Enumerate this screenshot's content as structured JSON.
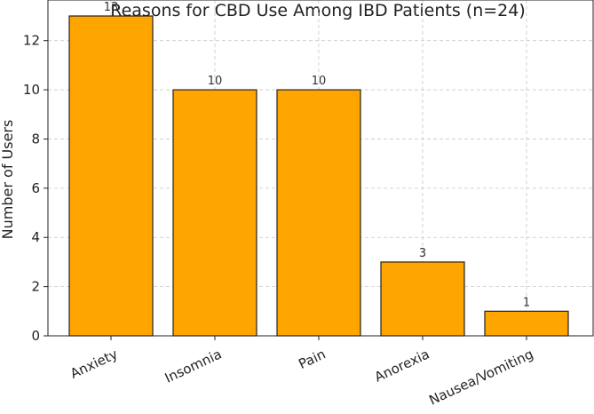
{
  "chart_data": {
    "type": "bar",
    "title": "Reasons for CBD Use Among IBD Patients (n=24)",
    "xlabel": "",
    "ylabel": "Number of Users",
    "categories": [
      "Anxiety",
      "Insomnia",
      "Pain",
      "Anorexia",
      "Nausea/Vomiting"
    ],
    "values": [
      13,
      10,
      10,
      3,
      1
    ],
    "ylim": [
      0,
      13.65
    ],
    "yticks": [
      0,
      2,
      4,
      6,
      8,
      10,
      12
    ],
    "grid": true,
    "bar_color": "#FFA500",
    "data_labels": true
  }
}
